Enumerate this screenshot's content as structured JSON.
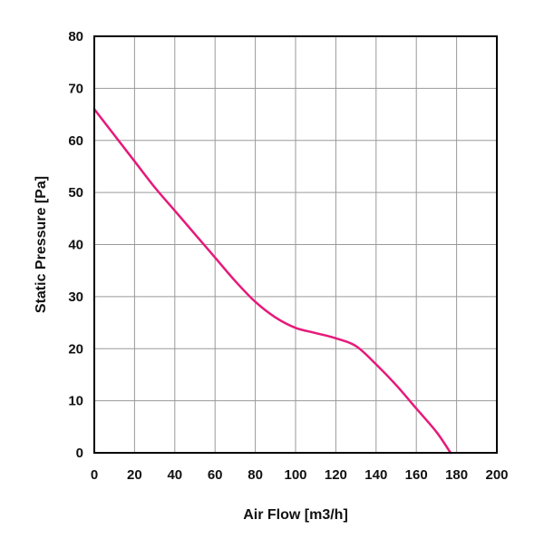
{
  "chart_data": {
    "type": "line",
    "title": "",
    "xlabel": "Air Flow [m3/h]",
    "ylabel": "Static Pressure [Pa]",
    "xlim": [
      0,
      200
    ],
    "ylim": [
      0,
      80
    ],
    "x_ticks": [
      "0",
      "20",
      "40",
      "60",
      "80",
      "100",
      "120",
      "140",
      "160",
      "180",
      "200"
    ],
    "y_ticks": [
      "0",
      "10",
      "20",
      "30",
      "40",
      "50",
      "60",
      "70",
      "80"
    ],
    "grid": true,
    "series": [
      {
        "color": "#e6197a",
        "x": [
          0,
          10,
          20,
          30,
          40,
          50,
          60,
          70,
          80,
          90,
          100,
          110,
          120,
          130,
          140,
          150,
          160,
          170,
          177
        ],
        "y": [
          66,
          61,
          56,
          51,
          46.5,
          42,
          37.5,
          33,
          29,
          26,
          24,
          23,
          22,
          20.5,
          17,
          13,
          8.5,
          4,
          0
        ]
      }
    ]
  }
}
